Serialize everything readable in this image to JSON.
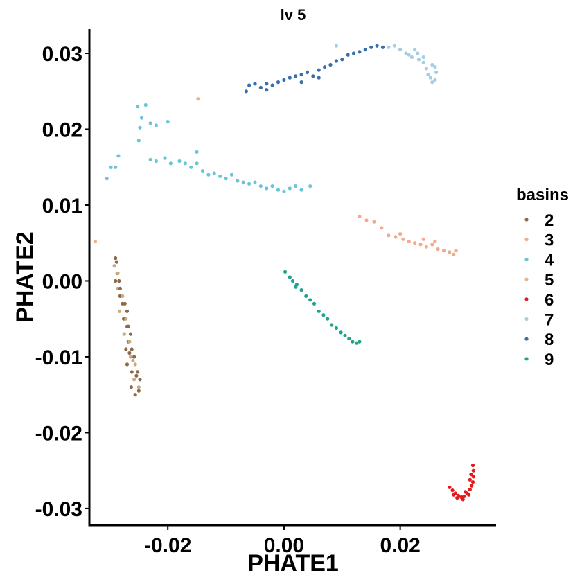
{
  "chart_data": {
    "type": "scatter",
    "title": "lv 5",
    "xlabel": "PHATE1",
    "ylabel": "PHATE2",
    "xlim": [
      -0.0335,
      0.0365
    ],
    "ylim": [
      -0.0322,
      0.0332
    ],
    "x_ticks": [
      {
        "value": -0.02,
        "label": "-0.02"
      },
      {
        "value": 0.0,
        "label": "0.00"
      },
      {
        "value": 0.02,
        "label": "0.02"
      }
    ],
    "y_ticks": [
      {
        "value": 0.03,
        "label": "0.03"
      },
      {
        "value": 0.02,
        "label": "0.02"
      },
      {
        "value": 0.01,
        "label": "0.01"
      },
      {
        "value": 0.0,
        "label": "0.00"
      },
      {
        "value": -0.01,
        "label": "-0.01"
      },
      {
        "value": -0.02,
        "label": "-0.02"
      },
      {
        "value": -0.03,
        "label": "-0.03"
      }
    ],
    "grid": false,
    "legend": {
      "title": "basins",
      "placement": "right",
      "entries": [
        {
          "name": "2",
          "color": "#8B6A4A"
        },
        {
          "name": "3",
          "color": "#F4A98C"
        },
        {
          "name": "4",
          "color": "#6CC4D8"
        },
        {
          "name": "5",
          "color": "#F0B08A"
        },
        {
          "name": "6",
          "color": "#E31A1C"
        },
        {
          "name": "7",
          "color": "#A6CEE3"
        },
        {
          "name": "8",
          "color": "#3A6EA8"
        },
        {
          "name": "9",
          "color": "#1FA38A"
        }
      ]
    },
    "series": [
      {
        "name": "2",
        "color": "#8B6A4A",
        "alt_color": "#C8AA82",
        "points": [
          [
            -0.029,
            0.003
          ],
          [
            -0.0292,
            0.002
          ],
          [
            -0.0287,
            0.001
          ],
          [
            -0.029,
            0.0
          ],
          [
            -0.0286,
            -0.001
          ],
          [
            -0.0282,
            -0.002
          ],
          [
            -0.0278,
            -0.003
          ],
          [
            -0.0283,
            -0.004
          ],
          [
            -0.0276,
            -0.005
          ],
          [
            -0.027,
            -0.006
          ],
          [
            -0.0275,
            -0.007
          ],
          [
            -0.0268,
            -0.008
          ],
          [
            -0.0272,
            -0.009
          ],
          [
            -0.0264,
            -0.01
          ],
          [
            -0.027,
            -0.011
          ],
          [
            -0.0262,
            -0.012
          ],
          [
            -0.0258,
            -0.013
          ],
          [
            -0.0263,
            -0.014
          ],
          [
            -0.0256,
            -0.015
          ],
          [
            -0.025,
            -0.014
          ],
          [
            -0.0248,
            -0.013
          ],
          [
            -0.0252,
            -0.012
          ],
          [
            -0.0256,
            -0.011
          ],
          [
            -0.0258,
            -0.01
          ],
          [
            -0.0262,
            -0.009
          ],
          [
            -0.0266,
            -0.008
          ],
          [
            -0.0264,
            -0.007
          ],
          [
            -0.0268,
            -0.006
          ],
          [
            -0.0272,
            -0.005
          ],
          [
            -0.027,
            -0.004
          ],
          [
            -0.0274,
            -0.003
          ],
          [
            -0.0278,
            -0.002
          ],
          [
            -0.0282,
            -0.001
          ],
          [
            -0.0284,
            0.0
          ],
          [
            -0.0286,
            0.001
          ],
          [
            -0.0288,
            0.0025
          ],
          [
            -0.0266,
            -0.0095
          ],
          [
            -0.026,
            -0.0105
          ],
          [
            -0.0254,
            -0.0125
          ],
          [
            -0.025,
            -0.0145
          ]
        ]
      },
      {
        "name": "3",
        "color": "#F4A98C",
        "points": [
          [
            0.013,
            0.0085
          ],
          [
            0.0142,
            0.008
          ],
          [
            0.0155,
            0.0078
          ],
          [
            0.0168,
            0.007
          ],
          [
            0.018,
            0.006
          ],
          [
            0.0192,
            0.0058
          ],
          [
            0.0205,
            0.0055
          ],
          [
            0.0215,
            0.0052
          ],
          [
            0.0225,
            0.005
          ],
          [
            0.0235,
            0.0048
          ],
          [
            0.0245,
            0.0045
          ],
          [
            0.0255,
            0.0048
          ],
          [
            0.0265,
            0.0042
          ],
          [
            0.0275,
            0.004
          ],
          [
            0.0285,
            0.0038
          ],
          [
            0.0292,
            0.0035
          ],
          [
            0.0296,
            0.004
          ],
          [
            0.026,
            0.0052
          ],
          [
            0.024,
            0.0055
          ],
          [
            0.02,
            0.0062
          ]
        ]
      },
      {
        "name": "4",
        "color": "#6CC4D8",
        "points": [
          [
            -0.0305,
            0.0135
          ],
          [
            -0.0298,
            0.015
          ],
          [
            -0.0285,
            0.0165
          ],
          [
            -0.029,
            0.015
          ],
          [
            -0.025,
            0.0185
          ],
          [
            -0.0248,
            0.0202
          ],
          [
            -0.0245,
            0.0215
          ],
          [
            -0.0252,
            0.023
          ],
          [
            -0.0238,
            0.0232
          ],
          [
            -0.023,
            0.0208
          ],
          [
            -0.022,
            0.0205
          ],
          [
            -0.02,
            0.021
          ],
          [
            -0.023,
            0.016
          ],
          [
            -0.022,
            0.0158
          ],
          [
            -0.0205,
            0.0162
          ],
          [
            -0.0195,
            0.0155
          ],
          [
            -0.018,
            0.0158
          ],
          [
            -0.017,
            0.0155
          ],
          [
            -0.016,
            0.015
          ],
          [
            -0.015,
            0.0155
          ],
          [
            -0.014,
            0.0145
          ],
          [
            -0.013,
            0.014
          ],
          [
            -0.012,
            0.0142
          ],
          [
            -0.011,
            0.0138
          ],
          [
            -0.01,
            0.0135
          ],
          [
            -0.009,
            0.014
          ],
          [
            -0.008,
            0.0132
          ],
          [
            -0.007,
            0.013
          ],
          [
            -0.006,
            0.0128
          ],
          [
            -0.005,
            0.013
          ],
          [
            -0.004,
            0.0125
          ],
          [
            -0.003,
            0.0122
          ],
          [
            -0.002,
            0.0125
          ],
          [
            -0.001,
            0.012
          ],
          [
            0.0,
            0.0118
          ],
          [
            0.001,
            0.0122
          ],
          [
            0.002,
            0.0125
          ],
          [
            0.003,
            0.012
          ],
          [
            0.0045,
            0.0125
          ],
          [
            -0.015,
            0.017
          ]
        ]
      },
      {
        "name": "5",
        "color": "#F0B08A",
        "points": [
          [
            -0.0325,
            0.0052
          ],
          [
            -0.0148,
            0.024
          ]
        ]
      },
      {
        "name": "6",
        "color": "#E31A1C",
        "points": [
          [
            0.0285,
            -0.0272
          ],
          [
            0.029,
            -0.0276
          ],
          [
            0.0295,
            -0.028
          ],
          [
            0.03,
            -0.0283
          ],
          [
            0.0305,
            -0.0285
          ],
          [
            0.031,
            -0.0284
          ],
          [
            0.0315,
            -0.028
          ],
          [
            0.032,
            -0.0275
          ],
          [
            0.0323,
            -0.027
          ],
          [
            0.0325,
            -0.0265
          ],
          [
            0.0326,
            -0.0258
          ],
          [
            0.0326,
            -0.025
          ],
          [
            0.0325,
            -0.0243
          ],
          [
            0.0318,
            -0.0282
          ],
          [
            0.0308,
            -0.0288
          ],
          [
            0.0298,
            -0.0286
          ],
          [
            0.032,
            -0.0262
          ],
          [
            0.0322,
            -0.0255
          ],
          [
            0.0292,
            -0.0282
          ],
          [
            0.0312,
            -0.0278
          ]
        ]
      },
      {
        "name": "7",
        "color": "#A6CEE3",
        "points": [
          [
            0.009,
            0.031
          ],
          [
            0.018,
            0.0308
          ],
          [
            0.019,
            0.031
          ],
          [
            0.02,
            0.0305
          ],
          [
            0.021,
            0.03
          ],
          [
            0.022,
            0.0295
          ],
          [
            0.0225,
            0.0305
          ],
          [
            0.0232,
            0.0292
          ],
          [
            0.024,
            0.0288
          ],
          [
            0.0245,
            0.028
          ],
          [
            0.0248,
            0.0272
          ],
          [
            0.0252,
            0.0268
          ],
          [
            0.0255,
            0.0262
          ],
          [
            0.026,
            0.0265
          ],
          [
            0.0262,
            0.0275
          ],
          [
            0.026,
            0.0282
          ],
          [
            0.0255,
            0.0285
          ],
          [
            0.024,
            0.0295
          ],
          [
            0.023,
            0.03
          ],
          [
            0.0215,
            0.0298
          ]
        ]
      },
      {
        "name": "8",
        "color": "#3A6EA8",
        "points": [
          [
            -0.0065,
            0.025
          ],
          [
            -0.006,
            0.0258
          ],
          [
            -0.005,
            0.026
          ],
          [
            -0.004,
            0.0255
          ],
          [
            -0.003,
            0.0252
          ],
          [
            -0.002,
            0.0258
          ],
          [
            -0.001,
            0.0262
          ],
          [
            0.0,
            0.0265
          ],
          [
            0.001,
            0.0268
          ],
          [
            0.002,
            0.027
          ],
          [
            0.003,
            0.0272
          ],
          [
            0.004,
            0.0275
          ],
          [
            0.005,
            0.027
          ],
          [
            0.006,
            0.0278
          ],
          [
            0.007,
            0.0282
          ],
          [
            0.008,
            0.0285
          ],
          [
            0.009,
            0.029
          ],
          [
            0.01,
            0.0292
          ],
          [
            0.011,
            0.0298
          ],
          [
            0.012,
            0.03
          ],
          [
            0.013,
            0.0302
          ],
          [
            0.014,
            0.0305
          ],
          [
            0.015,
            0.0308
          ],
          [
            0.016,
            0.031
          ],
          [
            0.017,
            0.0308
          ],
          [
            0.003,
            0.0262
          ],
          [
            0.006,
            0.0268
          ],
          [
            -0.003,
            0.026
          ]
        ]
      },
      {
        "name": "9",
        "color": "#1FA38A",
        "points": [
          [
            0.0002,
            0.0012
          ],
          [
            0.001,
            0.0005
          ],
          [
            0.0015,
            0.0
          ],
          [
            0.0022,
            -0.0005
          ],
          [
            0.003,
            -0.0012
          ],
          [
            0.0038,
            -0.002
          ],
          [
            0.0045,
            -0.0025
          ],
          [
            0.0052,
            -0.003
          ],
          [
            0.006,
            -0.004
          ],
          [
            0.0068,
            -0.0045
          ],
          [
            0.0075,
            -0.005
          ],
          [
            0.0082,
            -0.0058
          ],
          [
            0.009,
            -0.0062
          ],
          [
            0.0098,
            -0.0068
          ],
          [
            0.0105,
            -0.0072
          ],
          [
            0.0112,
            -0.0076
          ],
          [
            0.0118,
            -0.008
          ],
          [
            0.0125,
            -0.0082
          ],
          [
            0.013,
            -0.008
          ],
          [
            0.002,
            -0.0008
          ]
        ]
      }
    ]
  }
}
